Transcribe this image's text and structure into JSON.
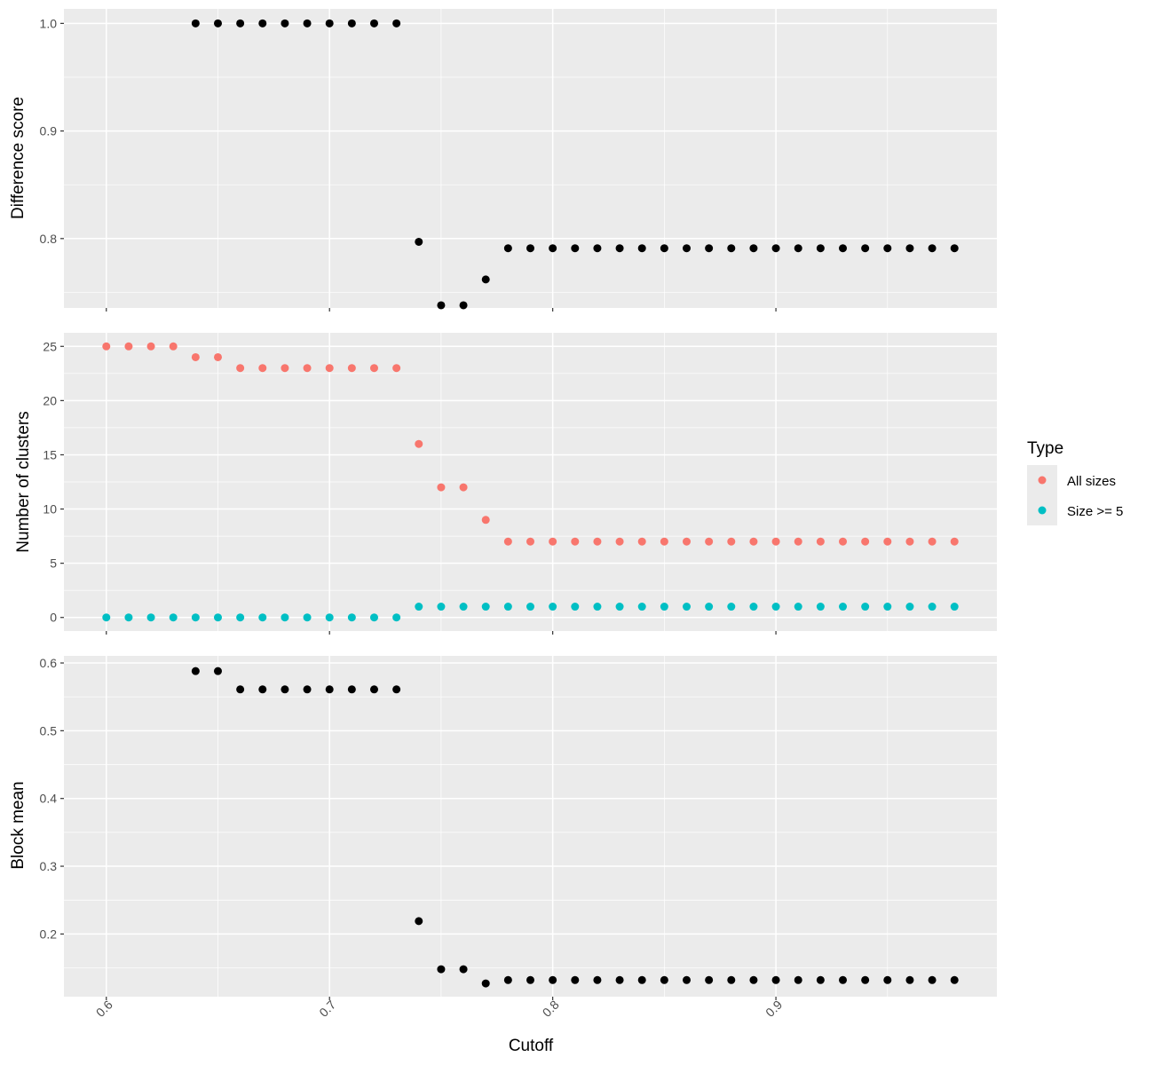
{
  "chart_data": [
    {
      "type": "scatter",
      "panel": "top",
      "ylabel": "Difference score",
      "xlim": [
        0.581,
        0.999
      ],
      "ylim": [
        0.7355,
        1.0135
      ],
      "yticks": [
        {
          "value": 0.8,
          "label": "0.8"
        },
        {
          "value": 0.9,
          "label": "0.9"
        },
        {
          "value": 1.0,
          "label": "1.0"
        }
      ],
      "xticks": [
        0.6,
        0.7,
        0.8,
        0.9
      ],
      "show_x_tick_labels": false,
      "grid": true,
      "series": [
        {
          "color": "#000000",
          "x": [
            0.64,
            0.65,
            0.66,
            0.67,
            0.68,
            0.69,
            0.7,
            0.71,
            0.72,
            0.73,
            0.74,
            0.75,
            0.76,
            0.77,
            0.78,
            0.79,
            0.8,
            0.81,
            0.82,
            0.83,
            0.84,
            0.85,
            0.86,
            0.87,
            0.88,
            0.89,
            0.9,
            0.91,
            0.92,
            0.93,
            0.94,
            0.95,
            0.96,
            0.97,
            0.98
          ],
          "y": [
            1.0,
            1.0,
            1.0,
            1.0,
            1.0,
            1.0,
            1.0,
            1.0,
            1.0,
            1.0,
            0.797,
            0.738,
            0.738,
            0.762,
            0.791,
            0.791,
            0.791,
            0.791,
            0.791,
            0.791,
            0.791,
            0.791,
            0.791,
            0.791,
            0.791,
            0.791,
            0.791,
            0.791,
            0.791,
            0.791,
            0.791,
            0.791,
            0.791,
            0.791,
            0.791
          ]
        }
      ]
    },
    {
      "type": "scatter",
      "panel": "middle",
      "ylabel": "Number of clusters",
      "xlim": [
        0.581,
        0.999
      ],
      "ylim": [
        -1.25,
        26.25
      ],
      "yticks": [
        {
          "value": 0,
          "label": "0"
        },
        {
          "value": 5,
          "label": "5"
        },
        {
          "value": 10,
          "label": "10"
        },
        {
          "value": 15,
          "label": "15"
        },
        {
          "value": 20,
          "label": "20"
        },
        {
          "value": 25,
          "label": "25"
        }
      ],
      "xticks": [
        0.6,
        0.7,
        0.8,
        0.9
      ],
      "show_x_tick_labels": false,
      "grid": true,
      "legend": {
        "title": "Type",
        "placement": "right"
      },
      "series": [
        {
          "name": "All sizes",
          "color": "#F8766D",
          "x": [
            0.6,
            0.61,
            0.62,
            0.63,
            0.64,
            0.65,
            0.66,
            0.67,
            0.68,
            0.69,
            0.7,
            0.71,
            0.72,
            0.73,
            0.74,
            0.75,
            0.76,
            0.77,
            0.78,
            0.79,
            0.8,
            0.81,
            0.82,
            0.83,
            0.84,
            0.85,
            0.86,
            0.87,
            0.88,
            0.89,
            0.9,
            0.91,
            0.92,
            0.93,
            0.94,
            0.95,
            0.96,
            0.97,
            0.98
          ],
          "y": [
            25,
            25,
            25,
            25,
            24,
            24,
            23,
            23,
            23,
            23,
            23,
            23,
            23,
            23,
            16,
            12,
            12,
            9,
            7,
            7,
            7,
            7,
            7,
            7,
            7,
            7,
            7,
            7,
            7,
            7,
            7,
            7,
            7,
            7,
            7,
            7,
            7,
            7,
            7
          ]
        },
        {
          "name": "Size >= 5",
          "color": "#00BFC4",
          "x": [
            0.6,
            0.61,
            0.62,
            0.63,
            0.64,
            0.65,
            0.66,
            0.67,
            0.68,
            0.69,
            0.7,
            0.71,
            0.72,
            0.73,
            0.74,
            0.75,
            0.76,
            0.77,
            0.78,
            0.79,
            0.8,
            0.81,
            0.82,
            0.83,
            0.84,
            0.85,
            0.86,
            0.87,
            0.88,
            0.89,
            0.9,
            0.91,
            0.92,
            0.93,
            0.94,
            0.95,
            0.96,
            0.97,
            0.98
          ],
          "y": [
            0,
            0,
            0,
            0,
            0,
            0,
            0,
            0,
            0,
            0,
            0,
            0,
            0,
            0,
            1,
            1,
            1,
            1,
            1,
            1,
            1,
            1,
            1,
            1,
            1,
            1,
            1,
            1,
            1,
            1,
            1,
            1,
            1,
            1,
            1,
            1,
            1,
            1,
            1
          ]
        }
      ]
    },
    {
      "type": "scatter",
      "panel": "bottom",
      "ylabel": "Block mean",
      "xlabel": "Cutoff",
      "xlim": [
        0.581,
        0.999
      ],
      "ylim": [
        0.1075,
        0.6105
      ],
      "yticks": [
        {
          "value": 0.2,
          "label": "0.2"
        },
        {
          "value": 0.3,
          "label": "0.3"
        },
        {
          "value": 0.4,
          "label": "0.4"
        },
        {
          "value": 0.5,
          "label": "0.5"
        },
        {
          "value": 0.6,
          "label": "0.6"
        }
      ],
      "xticks": [
        {
          "value": 0.6,
          "label": "0.6"
        },
        {
          "value": 0.7,
          "label": "0.7"
        },
        {
          "value": 0.8,
          "label": "0.8"
        },
        {
          "value": 0.9,
          "label": "0.9"
        }
      ],
      "show_x_tick_labels": true,
      "grid": true,
      "series": [
        {
          "color": "#000000",
          "x": [
            0.64,
            0.65,
            0.66,
            0.67,
            0.68,
            0.69,
            0.7,
            0.71,
            0.72,
            0.73,
            0.74,
            0.75,
            0.76,
            0.77,
            0.78,
            0.79,
            0.8,
            0.81,
            0.82,
            0.83,
            0.84,
            0.85,
            0.86,
            0.87,
            0.88,
            0.89,
            0.9,
            0.91,
            0.92,
            0.93,
            0.94,
            0.95,
            0.96,
            0.97,
            0.98
          ],
          "y": [
            0.588,
            0.588,
            0.561,
            0.561,
            0.561,
            0.561,
            0.561,
            0.561,
            0.561,
            0.561,
            0.219,
            0.148,
            0.148,
            0.127,
            0.132,
            0.132,
            0.132,
            0.132,
            0.132,
            0.132,
            0.132,
            0.132,
            0.132,
            0.132,
            0.132,
            0.132,
            0.132,
            0.132,
            0.132,
            0.132,
            0.132,
            0.132,
            0.132,
            0.132,
            0.132
          ]
        }
      ]
    }
  ],
  "colors": {
    "panel_background": "#EBEBEB",
    "grid": "#FFFFFF",
    "tick": "#333333"
  }
}
